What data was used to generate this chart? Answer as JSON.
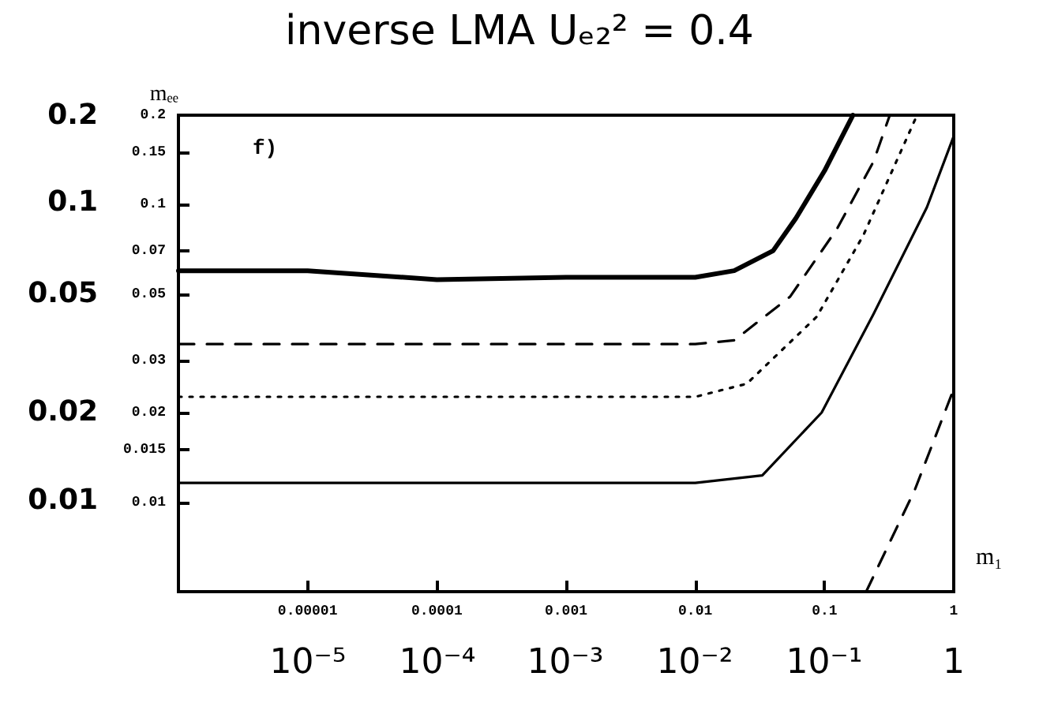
{
  "chart_data": {
    "type": "line",
    "title": "inverse LMA Uₑ₂² = 0.4",
    "xlabel": "m₁",
    "ylabel": "mₑₑ",
    "annotations": [
      "f)",
      "0.2",
      "0.1",
      "0.05",
      "0.02",
      "0.01",
      "10⁻⁵",
      "10⁻⁴",
      "10⁻³",
      "10⁻²",
      "10⁻¹",
      "1"
    ],
    "log": "xy",
    "grid": false,
    "marker": "none",
    "xlim": [
      1e-06,
      1
    ],
    "xticks": [
      {
        "value": 1e-05,
        "label": "0.00001"
      },
      0.0001,
      0.001,
      0.01,
      0.1,
      1
    ],
    "ylim": [
      0.005,
      0.2
    ],
    "yticks": [
      0.01,
      0.015,
      0.02,
      0.03,
      0.05,
      0.07,
      0.1,
      0.15,
      0.2
    ],
    "series": [
      {
        "color": "#000000",
        "line_style": "solid",
        "x": [
          1e-06,
          1e-05,
          0.0001,
          0.001,
          0.01,
          0.02,
          0.04,
          0.06,
          0.1,
          0.166
        ],
        "values": [
          0.06,
          0.06,
          0.056,
          0.057,
          0.057,
          0.06,
          0.07,
          0.09,
          0.13,
          0.2
        ]
      },
      {
        "color": "#000000",
        "line_style": "dashed",
        "x": [
          1e-06,
          0.01,
          0.02,
          0.054,
          0.125,
          0.24,
          0.32
        ],
        "values": [
          0.034,
          0.034,
          0.035,
          0.049,
          0.083,
          0.14,
          0.2
        ]
      },
      {
        "color": "#000000",
        "line_style": "dotted",
        "x": [
          1e-06,
          0.01,
          0.025,
          0.087,
          0.2,
          0.52
        ],
        "values": [
          0.0226,
          0.0226,
          0.025,
          0.042,
          0.079,
          0.2
        ]
      },
      {
        "color": "#000000",
        "line_style": "solid",
        "x": [
          1e-06,
          0.01,
          0.033,
          0.095,
          0.24,
          0.62,
          1
        ],
        "values": [
          0.0116,
          0.0116,
          0.0123,
          0.02,
          0.043,
          0.098,
          0.17
        ]
      },
      {
        "color": "#000000",
        "line_style": "dashed",
        "x": [
          0.21,
          0.5,
          1
        ],
        "values": [
          0.005,
          0.011,
          0.024
        ]
      }
    ]
  }
}
